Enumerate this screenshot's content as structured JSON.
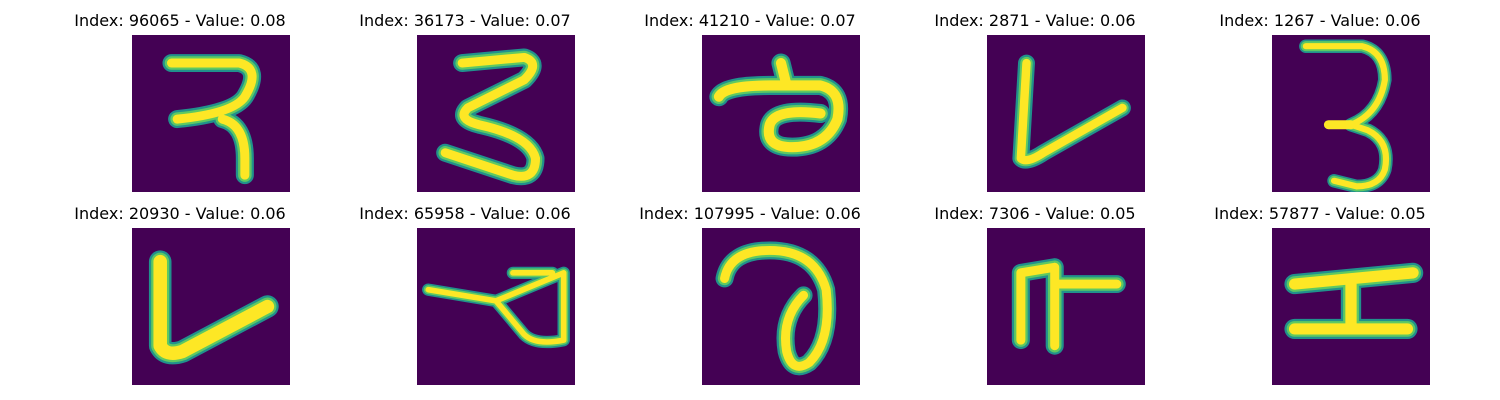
{
  "colors": {
    "background": "#440154",
    "stroke_core": "#fde725",
    "stroke_mid": "#5ec962",
    "stroke_edge": "#21918c"
  },
  "grid": [
    {
      "index": "96065",
      "value": "0.08",
      "glyph": "hook-3"
    },
    {
      "index": "36173",
      "value": "0.07",
      "glyph": "zigzag-3"
    },
    {
      "index": "41210",
      "value": "0.07",
      "glyph": "loop-q"
    },
    {
      "index": "2871",
      "value": "0.06",
      "glyph": "v-mark"
    },
    {
      "index": "1267",
      "value": "0.06",
      "glyph": "three"
    },
    {
      "index": "20930",
      "value": "0.06",
      "glyph": "l-stroke"
    },
    {
      "index": "65958",
      "value": "0.06",
      "glyph": "loop-small"
    },
    {
      "index": "107995",
      "value": "0.06",
      "glyph": "curl"
    },
    {
      "index": "7306",
      "value": "0.05",
      "glyph": "e-fork"
    },
    {
      "index": "57877",
      "value": "0.05",
      "glyph": "h-rotated"
    }
  ],
  "labels": {
    "index_prefix": "Index: ",
    "value_sep": " - Value: "
  }
}
